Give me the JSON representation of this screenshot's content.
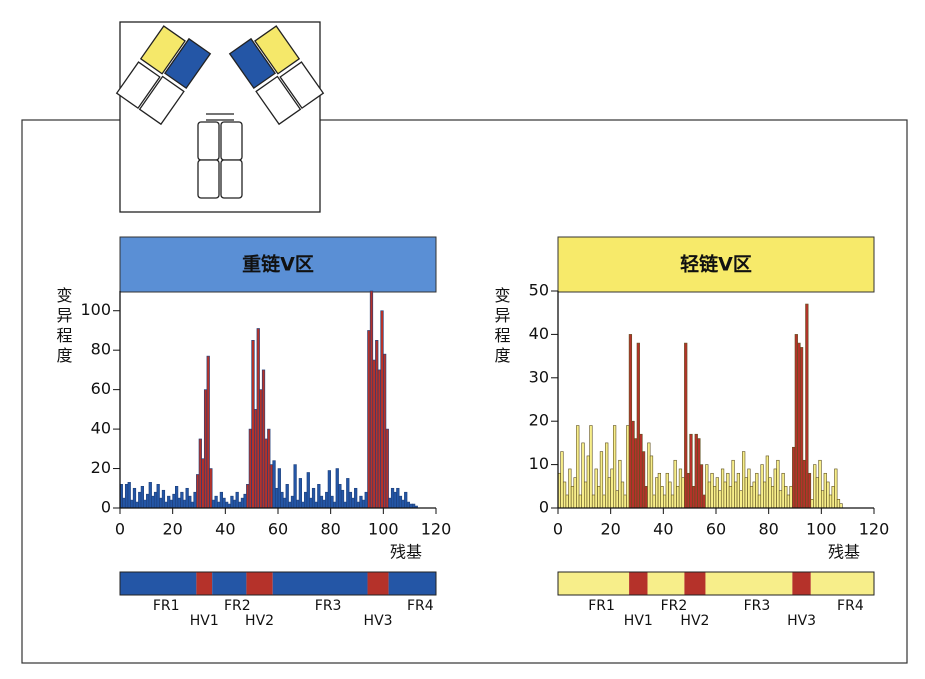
{
  "chart_data": [
    {
      "type": "bar",
      "title": "重链V区",
      "header_color": "#5a8fd5",
      "edgecolor": "#1d3f7a",
      "ylabel": "变异程度",
      "xlabel": "残基",
      "xlim": [
        0,
        120
      ],
      "xticks": [
        0,
        20,
        40,
        60,
        80,
        100,
        120
      ],
      "ylim": [
        0,
        110
      ],
      "yticks": [
        0,
        20,
        40,
        60,
        80,
        100
      ],
      "x": [
        1,
        2,
        3,
        4,
        5,
        6,
        7,
        8,
        9,
        10,
        11,
        12,
        13,
        14,
        15,
        16,
        17,
        18,
        19,
        20,
        21,
        22,
        23,
        24,
        25,
        26,
        27,
        28,
        29,
        30,
        31,
        32,
        33,
        34,
        35,
        36,
        37,
        38,
        39,
        40,
        41,
        42,
        43,
        44,
        45,
        46,
        47,
        48,
        49,
        50,
        51,
        52,
        53,
        54,
        55,
        56,
        57,
        58,
        59,
        60,
        61,
        62,
        63,
        64,
        65,
        66,
        67,
        68,
        69,
        70,
        71,
        72,
        73,
        74,
        75,
        76,
        77,
        78,
        79,
        80,
        81,
        82,
        83,
        84,
        85,
        86,
        87,
        88,
        89,
        90,
        91,
        92,
        93,
        94,
        95,
        96,
        97,
        98,
        99,
        100,
        101,
        102,
        103,
        104,
        105,
        106,
        107,
        108,
        109,
        110,
        111,
        112,
        113
      ],
      "values": [
        12,
        5,
        12,
        13,
        4,
        10,
        3,
        8,
        11,
        4,
        7,
        13,
        6,
        8,
        12,
        5,
        9,
        3,
        6,
        4,
        7,
        11,
        5,
        8,
        4,
        10,
        6,
        3,
        8,
        17,
        35,
        25,
        60,
        77,
        20,
        4,
        6,
        3,
        8,
        5,
        3,
        2,
        6,
        4,
        8,
        3,
        5,
        7,
        12,
        40,
        85,
        50,
        91,
        60,
        70,
        35,
        40,
        22,
        24,
        10,
        20,
        8,
        5,
        12,
        3,
        6,
        22,
        4,
        15,
        3,
        8,
        18,
        5,
        10,
        3,
        12,
        6,
        4,
        8,
        19,
        6,
        3,
        20,
        12,
        9,
        3,
        15,
        8,
        5,
        10,
        3,
        6,
        4,
        8,
        90,
        110,
        75,
        85,
        70,
        100,
        78,
        40,
        5,
        10,
        8,
        10,
        6,
        4,
        8,
        3,
        2,
        2,
        1
      ],
      "regions": [
        {
          "name": "FR1",
          "start": 0,
          "end": 29,
          "color": "#2456a6"
        },
        {
          "name": "HV1",
          "start": 29,
          "end": 35,
          "color": "#b5322a"
        },
        {
          "name": "FR2",
          "start": 35,
          "end": 48,
          "color": "#2456a6"
        },
        {
          "name": "HV2",
          "start": 48,
          "end": 58,
          "color": "#b5322a"
        },
        {
          "name": "FR3",
          "start": 58,
          "end": 94,
          "color": "#2456a6"
        },
        {
          "name": "HV3",
          "start": 94,
          "end": 102,
          "color": "#b5322a"
        },
        {
          "name": "FR4",
          "start": 102,
          "end": 120,
          "color": "#2456a6"
        }
      ]
    },
    {
      "type": "bar",
      "title": "轻链V区",
      "header_color": "#f7ea6a",
      "edgecolor": "#5e5020",
      "ylabel": "变异程度",
      "xlabel": "残基",
      "xlim": [
        0,
        120
      ],
      "xticks": [
        0,
        20,
        40,
        60,
        80,
        100,
        120
      ],
      "ylim": [
        0,
        50
      ],
      "yticks": [
        0,
        10,
        20,
        30,
        40,
        50
      ],
      "x": [
        1,
        2,
        3,
        4,
        5,
        6,
        7,
        8,
        9,
        10,
        11,
        12,
        13,
        14,
        15,
        16,
        17,
        18,
        19,
        20,
        21,
        22,
        23,
        24,
        25,
        26,
        27,
        28,
        29,
        30,
        31,
        32,
        33,
        34,
        35,
        36,
        37,
        38,
        39,
        40,
        41,
        42,
        43,
        44,
        45,
        46,
        47,
        48,
        49,
        50,
        51,
        52,
        53,
        54,
        55,
        56,
        57,
        58,
        59,
        60,
        61,
        62,
        63,
        64,
        65,
        66,
        67,
        68,
        69,
        70,
        71,
        72,
        73,
        74,
        75,
        76,
        77,
        78,
        79,
        80,
        81,
        82,
        83,
        84,
        85,
        86,
        87,
        88,
        89,
        90,
        91,
        92,
        93,
        94,
        95,
        96,
        97,
        98,
        99,
        100,
        101,
        102,
        103,
        104,
        105,
        106,
        107,
        108
      ],
      "values": [
        8,
        13,
        6,
        3,
        9,
        5,
        7,
        19,
        3,
        15,
        6,
        12,
        19,
        3,
        9,
        5,
        13,
        3,
        15,
        7,
        9,
        19,
        4,
        11,
        6,
        3,
        19,
        40,
        20,
        16,
        38,
        17,
        13,
        5,
        15,
        12,
        3,
        7,
        8,
        5,
        3,
        8,
        6,
        3,
        11,
        5,
        9,
        7,
        38,
        8,
        17,
        5,
        17,
        16,
        10,
        3,
        10,
        6,
        8,
        5,
        7,
        4,
        9,
        6,
        8,
        5,
        11,
        6,
        8,
        4,
        13,
        7,
        9,
        5,
        6,
        8,
        3,
        10,
        6,
        12,
        7,
        5,
        9,
        11,
        4,
        8,
        5,
        3,
        5,
        14,
        40,
        38,
        37,
        11,
        47,
        8,
        2,
        10,
        7,
        11,
        4,
        8,
        6,
        3,
        5,
        9,
        2,
        1
      ],
      "regions": [
        {
          "name": "FR1",
          "start": 0,
          "end": 27,
          "color": "#f7ee8a"
        },
        {
          "name": "HV1",
          "start": 27,
          "end": 34,
          "color": "#b5322a"
        },
        {
          "name": "FR2",
          "start": 34,
          "end": 48,
          "color": "#f7ee8a"
        },
        {
          "name": "HV2",
          "start": 48,
          "end": 56,
          "color": "#b5322a"
        },
        {
          "name": "FR3",
          "start": 56,
          "end": 89,
          "color": "#f7ee8a"
        },
        {
          "name": "HV3",
          "start": 89,
          "end": 96,
          "color": "#b5322a"
        },
        {
          "name": "FR4",
          "start": 96,
          "end": 120,
          "color": "#f7ee8a"
        }
      ]
    }
  ]
}
